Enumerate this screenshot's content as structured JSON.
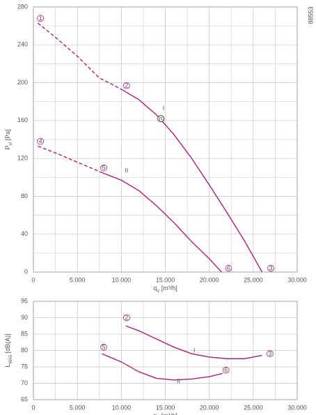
{
  "chart_data": [
    {
      "type": "line",
      "xlabel": {
        "main": "q",
        "sub": "V",
        "unit": " [m³/h]"
      },
      "ylabel": {
        "main": "P",
        "sub": "sf",
        "unit": " [Pa]"
      },
      "code": "88553",
      "xlim": [
        0,
        30000
      ],
      "ylim": [
        0,
        280
      ],
      "xticks": [
        0,
        {
          "value": 5000,
          "label": "5.000"
        },
        {
          "value": 10000,
          "label": "10.000"
        },
        {
          "value": 15000,
          "label": "15.000"
        },
        {
          "value": 20000,
          "label": "20.000"
        },
        {
          "value": 25000,
          "label": "25.000"
        },
        {
          "value": 30000,
          "label": "30.000"
        }
      ],
      "yticks": [
        0,
        40,
        80,
        120,
        160,
        200,
        240,
        280
      ],
      "xminor": [
        2500,
        7500,
        12500,
        17500,
        22500,
        27500
      ],
      "yminor": [
        20,
        60,
        100,
        140,
        180,
        220,
        260
      ],
      "grid": true,
      "series": [
        {
          "color": "#b5197e",
          "dashed": true,
          "x": [
            500,
            2500,
            5000,
            7500,
            9000,
            10200
          ],
          "values": [
            263,
            248,
            228,
            205,
            198,
            192
          ]
        },
        {
          "color": "#b5197e",
          "dashed": false,
          "x": [
            10200,
            12000,
            14000,
            16000,
            18000,
            20000,
            22000,
            24000,
            26000
          ],
          "values": [
            192,
            182,
            166,
            145,
            120,
            92,
            63,
            33,
            0
          ]
        },
        {
          "color": "#b5197e",
          "dashed": true,
          "x": [
            500,
            3000,
            5500,
            7800
          ],
          "values": [
            133,
            124,
            114,
            105
          ]
        },
        {
          "color": "#b5197e",
          "dashed": false,
          "x": [
            7800,
            10000,
            12000,
            14000,
            16000,
            18000,
            20000,
            21400
          ],
          "values": [
            105,
            97,
            86,
            70,
            52,
            32,
            14,
            0
          ]
        }
      ],
      "annotations": [
        {
          "text": "1",
          "x": 800,
          "y": 268,
          "style": "circle"
        },
        {
          "text": "2",
          "x": 10600,
          "y": 197,
          "style": "circle"
        },
        {
          "text": "3",
          "x": 27000,
          "y": 4,
          "style": "circle"
        },
        {
          "text": "4",
          "x": 800,
          "y": 138,
          "style": "circle"
        },
        {
          "text": "5",
          "x": 8000,
          "y": 110,
          "style": "circle"
        },
        {
          "text": "6",
          "x": 22200,
          "y": 4,
          "style": "circle"
        },
        {
          "text": "n",
          "x": 14500,
          "y": 162,
          "style": "dark"
        },
        {
          "text": "I",
          "x": 14800,
          "y": 173,
          "style": "plain"
        },
        {
          "text": "II",
          "x": 10600,
          "y": 107,
          "style": "plain"
        }
      ]
    },
    {
      "type": "line",
      "xlabel": {
        "main": "q",
        "sub": "V",
        "unit": " [m³/h]"
      },
      "ylabel": {
        "main": "L",
        "sub": "WA5",
        "unit": " [dB(A)]"
      },
      "xlim": [
        0,
        30000
      ],
      "ylim": [
        65,
        95
      ],
      "xticks": [
        0,
        {
          "value": 5000,
          "label": "5.000"
        },
        {
          "value": 10000,
          "label": "10.000"
        },
        {
          "value": 15000,
          "label": "15.000"
        },
        {
          "value": 20000,
          "label": "20.000"
        },
        {
          "value": 25000,
          "label": "25.000"
        },
        {
          "value": 30000,
          "label": "30.000"
        }
      ],
      "yticks": [
        65,
        70,
        75,
        80,
        85,
        90,
        95
      ],
      "xminor": [
        2500,
        7500,
        12500,
        17500,
        22500,
        27500
      ],
      "yminor": [],
      "grid": true,
      "series": [
        {
          "color": "#b5197e",
          "dashed": false,
          "x": [
            10500,
            12000,
            14000,
            16000,
            18000,
            20000,
            22000,
            24000,
            26000
          ],
          "values": [
            87.5,
            86,
            83.5,
            81,
            79,
            78,
            77.5,
            77.5,
            78.5
          ]
        },
        {
          "color": "#b5197e",
          "dashed": false,
          "x": [
            7800,
            10000,
            12000,
            14000,
            16000,
            18000,
            20000,
            21500
          ],
          "values": [
            79,
            76.5,
            73.5,
            71.5,
            71,
            71.3,
            72,
            73
          ]
        }
      ],
      "annotations": [
        {
          "text": "2",
          "x": 10600,
          "y": 90,
          "style": "circle"
        },
        {
          "text": "3",
          "x": 26900,
          "y": 79,
          "style": "circle"
        },
        {
          "text": "5",
          "x": 8000,
          "y": 81,
          "style": "circle"
        },
        {
          "text": "6",
          "x": 21900,
          "y": 74,
          "style": "circle"
        },
        {
          "text": "I",
          "x": 18300,
          "y": 80,
          "style": "plain"
        },
        {
          "text": "II",
          "x": 16500,
          "y": 70.6,
          "style": "plain"
        }
      ]
    }
  ]
}
